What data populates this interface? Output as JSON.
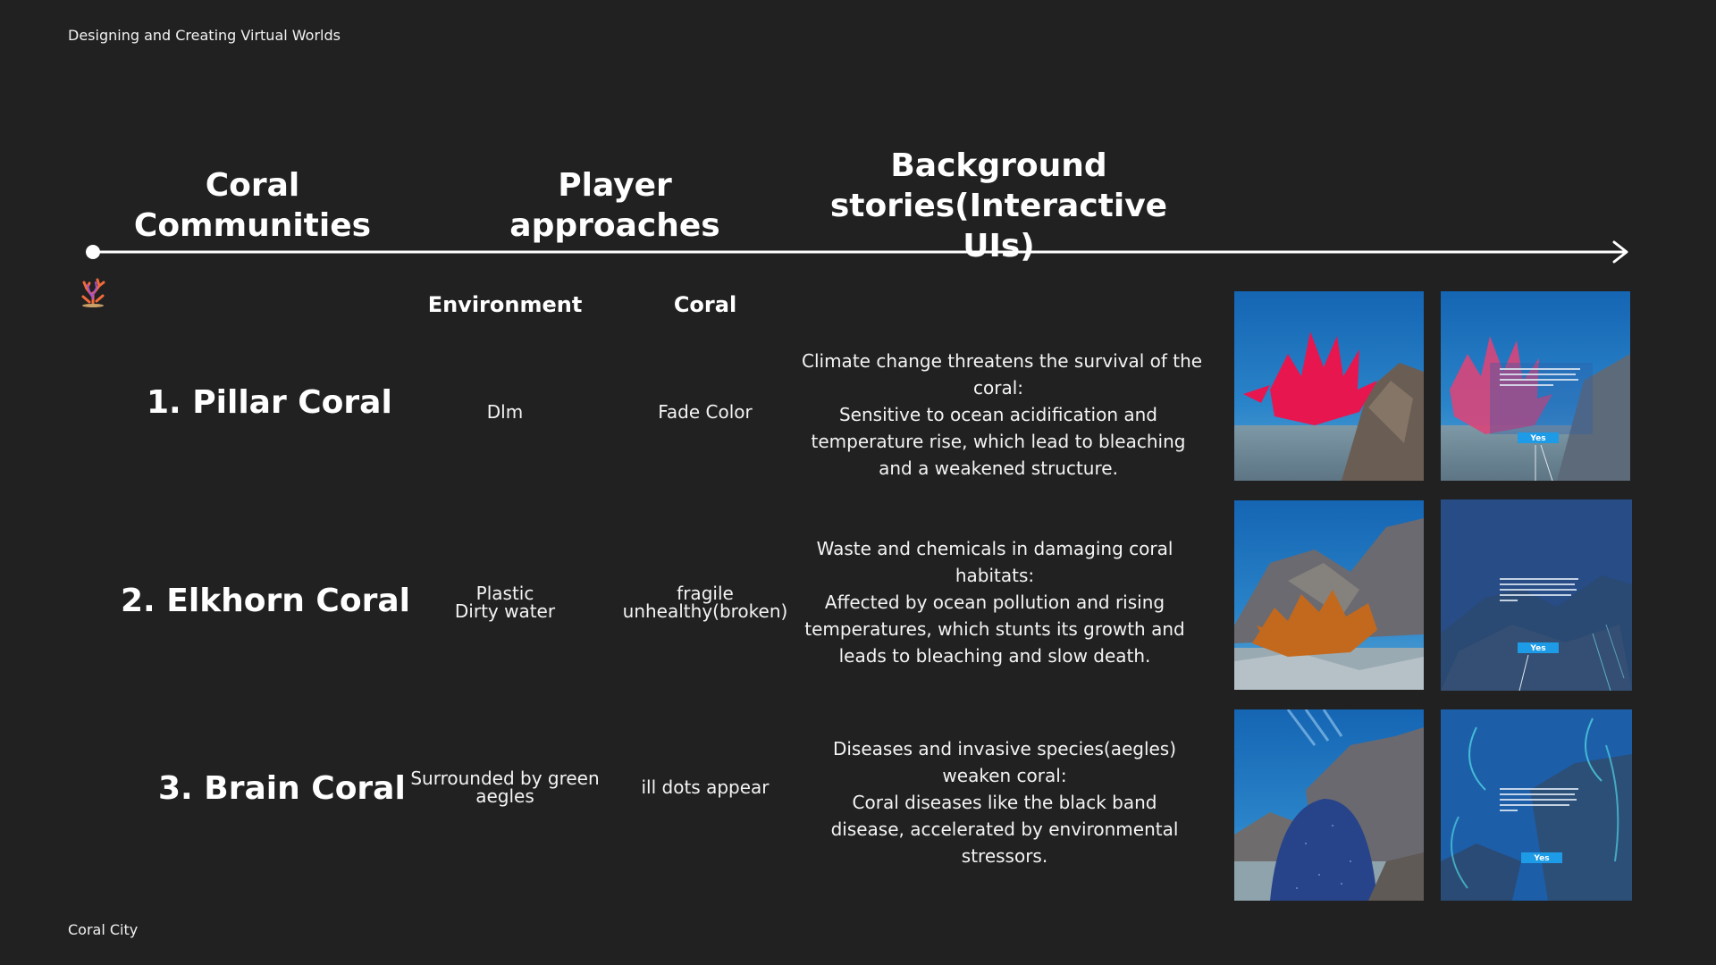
{
  "header": {
    "course_title": "Designing and Creating Virtual Worlds"
  },
  "footer": {
    "project_name": "Coral City"
  },
  "columns": {
    "coral_communities": "Coral Communities",
    "player_approaches": "Player approaches",
    "background_stories_line1": "Background",
    "background_stories_line2": "stories(Interactive UIs)"
  },
  "subheaders": {
    "environment": "Environment",
    "coral": "Coral"
  },
  "icons": {
    "timeline_icon": "coral-emoji-icon"
  },
  "rows": [
    {
      "number": "1.",
      "name": "Pillar Coral",
      "environment": [
        "Dlm"
      ],
      "coral": [
        "Fade Color"
      ],
      "story": [
        "Climate change threatens the survival of the",
        "coral:",
        "Sensitive to ocean acidification and",
        "temperature rise, which lead to bleaching",
        "and a weakened structure."
      ],
      "ui_button": "Yes"
    },
    {
      "number": "2.",
      "name": "Elkhorn Coral",
      "environment": [
        "Plastic",
        "Dirty water"
      ],
      "coral": [
        "fragile",
        "unhealthy(broken)"
      ],
      "story": [
        "Waste and chemicals in damaging coral",
        "habitats:",
        "Affected by ocean pollution and rising",
        "temperatures, which stunts its growth and",
        "leads to bleaching and slow death."
      ],
      "ui_button": "Yes"
    },
    {
      "number": "3.",
      "name": "Brain Coral",
      "environment": [
        "Surrounded by green",
        "aegles"
      ],
      "coral": [
        "ill dots appear"
      ],
      "story": [
        "Diseases and invasive species(aegles)",
        "weaken coral:",
        "Coral diseases like the black band",
        "disease, accelerated by environmental",
        "stressors."
      ],
      "ui_button": "Yes"
    }
  ],
  "colors": {
    "background": "#212121",
    "text": "#ffffff",
    "ocean": "#1b6fb8",
    "pillar_coral": "#e8164f",
    "elkhorn_coral": "#c2691e",
    "brain_coral": "#27448a",
    "ui_button": "#1e9be6"
  }
}
